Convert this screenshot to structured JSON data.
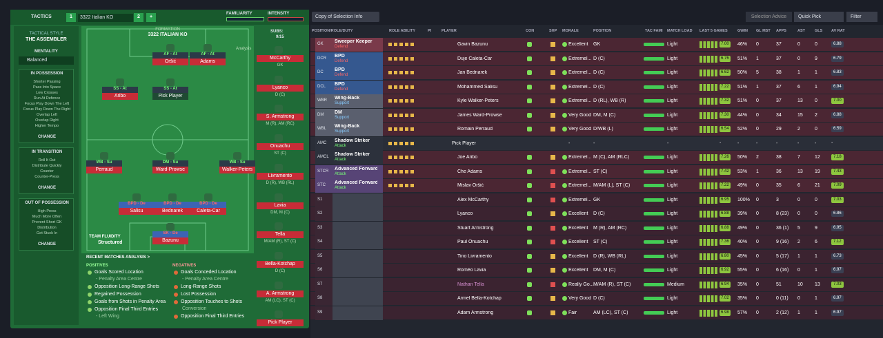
{
  "header": {
    "tab": "TACTICS",
    "tactic": "3322 Italian KO",
    "slots": [
      "1",
      "2",
      "+"
    ],
    "familiarity": "FAMILIARITY",
    "intensity": "INTENSITY"
  },
  "style": {
    "heading": "TACTICAL STYLE",
    "name": "THE ASSEMBLER",
    "mentality_label": "MENTALITY",
    "mentality": "Balanced",
    "sections": [
      {
        "title": "IN POSSESSION",
        "items": [
          "Shorter Passing",
          "Pass Into Space",
          "Low Crosses",
          "Run At Defence",
          "Focus Play Down The Left",
          "Focus Play Down The Right",
          "Overlap Left",
          "Overlap Right",
          "Higher Tempo"
        ],
        "button": "CHANGE"
      },
      {
        "title": "IN TRANSITION",
        "items": [
          "Roll It Out",
          "Distribute Quickly",
          "Counter",
          "Counter-Press"
        ],
        "button": "CHANGE"
      },
      {
        "title": "OUT OF POSSESSION",
        "items": [
          "High Press",
          "Much More Often",
          "Prevent Short GK",
          "Distribution",
          "Get Stuck In"
        ],
        "button": "CHANGE"
      }
    ]
  },
  "pitch": {
    "formation_label": "FORMATION",
    "formation": "3322 ITALIAN KO",
    "subs_label": "SUBS:",
    "subs_count": "9/15",
    "analysis": "Analysis",
    "players": [
      {
        "role": "AF - At",
        "name": "Oršić"
      },
      {
        "role": "AF - At",
        "name": "Adams"
      },
      {
        "role": "SS - At",
        "name": "Aribo"
      },
      {
        "role": "SS - At",
        "name": "Pick Player"
      },
      {
        "role": "WB - Su",
        "name": "Perraud"
      },
      {
        "role": "DM - Su",
        "name": "Ward-Prowse"
      },
      {
        "role": "WB - Su",
        "name": "Walker-Peters"
      },
      {
        "role": "BPD - De",
        "name": "Salisu"
      },
      {
        "role": "BPD - De",
        "name": "Bednarek"
      },
      {
        "role": "BPD - De",
        "name": "Caleta-Car"
      },
      {
        "role": "SK - De",
        "name": "Bazunu"
      }
    ],
    "subs": [
      {
        "name": "McCarthy",
        "pos": "GK"
      },
      {
        "name": "Lyanco",
        "pos": "D (C)"
      },
      {
        "name": "S. Armstrong",
        "pos": "M (R), AM (RC)"
      },
      {
        "name": "Onuachu",
        "pos": "ST (C)"
      },
      {
        "name": "Livramento",
        "pos": "D (R), WB (RL)"
      },
      {
        "name": "Lavia",
        "pos": "DM, M (C)"
      },
      {
        "name": "Tella",
        "pos": "M/AM (R), ST (C)"
      },
      {
        "name": "Bella-Kotchap",
        "pos": "D (C)"
      },
      {
        "name": "A. Armstrong",
        "pos": "AM (LC), ST (C)"
      },
      {
        "name": "Pick Player"
      }
    ]
  },
  "fluidity": {
    "label": "TEAM FLUIDITY",
    "value": "Structured"
  },
  "recent": {
    "title": "RECENT MATCHES ANALYSIS >",
    "positives_label": "POSITIVES",
    "positives": [
      {
        "text": "Goals Scored Location",
        "sub": "- Penalty Area Centre"
      },
      {
        "text": "Opposition Long-Range Shots"
      },
      {
        "text": "Regained Possession"
      },
      {
        "text": "Goals from Shots in Penalty Area"
      },
      {
        "text": "Opposition Final Third Entries",
        "sub": "- Left Wing"
      }
    ],
    "negatives_label": "NEGATIVES",
    "negatives": [
      {
        "text": "Goals Conceded Location",
        "sub": "- Penalty Area Centre"
      },
      {
        "text": "Long-Range Shots"
      },
      {
        "text": "Lost Possession"
      },
      {
        "text": "Opposition Touches to Shots",
        "sub": "Conversion"
      },
      {
        "text": "Opposition Final Third Entries"
      }
    ]
  },
  "toolbar": {
    "view": "Copy of Selection Info",
    "advice": "Selection Advice",
    "quick": "Quick Pick",
    "filter": "Filter"
  },
  "table": {
    "columns": [
      "POSITION/ROLE/DUTY",
      "ROLE ABILITY",
      "PI",
      "PLAYER",
      "CON",
      "SHP",
      "MORALE",
      "POSITION",
      "TAC FAMI",
      "MATCH LOAD",
      "LAST 5 GAMES",
      "GWIN",
      "GL MST",
      "APPS",
      "AST",
      "GLS",
      "AV RAT"
    ],
    "rows": [
      {
        "pos": "GK",
        "role": "Sweeper Keeper",
        "duty": "Defend",
        "player": "Gavin Bazunu",
        "morale": "Excellent",
        "position": "GK",
        "load": "Light",
        "form": "7.00",
        "gwin": "46%",
        "glmst": "0",
        "apps": "37",
        "ast": "0",
        "gls": "0",
        "avrat": "6.88"
      },
      {
        "pos": "DCR",
        "role": "BPD",
        "duty": "Defend",
        "player": "Duje Caleta-Car",
        "morale": "Extremel...",
        "position": "D (C)",
        "load": "Light",
        "form": "6.76",
        "gwin": "51%",
        "glmst": "1",
        "apps": "37",
        "ast": "0",
        "gls": "9",
        "avrat": "6.79"
      },
      {
        "pos": "DC",
        "role": "BPD",
        "duty": "Defend",
        "player": "Jan Bednarek",
        "morale": "Extremel...",
        "position": "D (C)",
        "load": "Light",
        "form": "6.62",
        "gwin": "50%",
        "glmst": "5",
        "apps": "38",
        "ast": "1",
        "gls": "1",
        "avrat": "6.83"
      },
      {
        "pos": "DCL",
        "role": "BPD",
        "duty": "Defend",
        "player": "Mohammed Salisu",
        "morale": "Extremel...",
        "position": "D (C)",
        "load": "Light",
        "form": "7.22",
        "gwin": "51%",
        "glmst": "1",
        "apps": "37",
        "ast": "6",
        "gls": "1",
        "avrat": "6.94"
      },
      {
        "pos": "WBR",
        "role": "Wing-Back",
        "duty": "Support",
        "player": "Kyle Walker-Peters",
        "morale": "Extremel...",
        "position": "D (RL), WB (R)",
        "load": "Light",
        "form": "7.32",
        "gwin": "51%",
        "glmst": "0",
        "apps": "37",
        "ast": "13",
        "gls": "0",
        "avrat": "7.00"
      },
      {
        "pos": "DM",
        "role": "DM",
        "duty": "Support",
        "player": "James Ward-Prowse",
        "morale": "Very Good",
        "position": "DM, M (C)",
        "load": "Light",
        "form": "7.30",
        "gwin": "44%",
        "glmst": "0",
        "apps": "34",
        "ast": "15",
        "gls": "2",
        "avrat": "6.88"
      },
      {
        "pos": "WBL",
        "role": "Wing-Back",
        "duty": "Support",
        "player": "Romain Perraud",
        "morale": "Very Good",
        "position": "D/WB (L)",
        "load": "Light",
        "form": "6.54",
        "gwin": "52%",
        "glmst": "0",
        "apps": "29",
        "ast": "2",
        "gls": "0",
        "avrat": "6.59"
      },
      {
        "pos": "AMC",
        "role": "Shadow Striker",
        "duty": "Attack",
        "player": "Pick Player",
        "morale": "-",
        "position": "-",
        "load": "-",
        "form": "-",
        "gwin": "-",
        "glmst": "-",
        "apps": "-",
        "ast": "-",
        "gls": "-",
        "avrat": "-"
      },
      {
        "pos": "AMCL",
        "role": "Shadow Striker",
        "duty": "Attack",
        "player": "Joe Aribo",
        "morale": "Extremel...",
        "position": "M (C), AM (RLC)",
        "load": "Light",
        "form": "7.26",
        "gwin": "50%",
        "glmst": "2",
        "apps": "38",
        "ast": "7",
        "gls": "12",
        "avrat": "7.18"
      },
      {
        "pos": "STCR",
        "role": "Advanced Forward",
        "duty": "Attack",
        "player": "Che Adams",
        "morale": "Extremel...",
        "position": "ST (C)",
        "load": "Light",
        "form": "7.42",
        "gwin": "53%",
        "glmst": "1",
        "apps": "36",
        "ast": "13",
        "gls": "19",
        "avrat": "7.43"
      },
      {
        "pos": "STC",
        "role": "Advanced Forward",
        "duty": "Attack",
        "player": "Mislav Oršić",
        "morale": "Extremel...",
        "position": "M/AM (L), ST (C)",
        "load": "Light",
        "form": "7.22",
        "gwin": "49%",
        "glmst": "0",
        "apps": "35",
        "ast": "6",
        "gls": "21",
        "avrat": "7.09"
      },
      {
        "pos": "S1",
        "player": "Alex McCarthy",
        "morale": "Extremel...",
        "position": "GK",
        "load": "Light",
        "form": "6.95",
        "gwin": "100%",
        "glmst": "0",
        "apps": "3",
        "ast": "0",
        "gls": "0",
        "avrat": "7.03"
      },
      {
        "pos": "S2",
        "player": "Lyanco",
        "morale": "Excellent",
        "position": "D (C)",
        "load": "Light",
        "form": "6.88",
        "gwin": "39%",
        "glmst": "0",
        "apps": "8 (23)",
        "ast": "0",
        "gls": "0",
        "avrat": "6.86"
      },
      {
        "pos": "S3",
        "player": "Stuart Armstrong",
        "morale": "Excellent",
        "position": "M (R), AM (RC)",
        "load": "Light",
        "form": "6.88",
        "gwin": "49%",
        "glmst": "0",
        "apps": "36 (1)",
        "ast": "5",
        "gls": "9",
        "avrat": "6.95"
      },
      {
        "pos": "S4",
        "player": "Paul Onuachu",
        "morale": "Excellent",
        "position": "ST (C)",
        "load": "Light",
        "form": "7.36",
        "gwin": "40%",
        "glmst": "0",
        "apps": "9 (16)",
        "ast": "2",
        "gls": "6",
        "avrat": "7.12"
      },
      {
        "pos": "S5",
        "player": "Tino Livramento",
        "morale": "Excellent",
        "position": "D (R), WB (RL)",
        "load": "Light",
        "form": "6.80",
        "gwin": "45%",
        "glmst": "0",
        "apps": "5 (17)",
        "ast": "1",
        "gls": "1",
        "avrat": "6.73"
      },
      {
        "pos": "S6",
        "player": "Roméo Lavia",
        "morale": "Excellent",
        "position": "DM, M (C)",
        "load": "Light",
        "form": "6.92",
        "gwin": "55%",
        "glmst": "0",
        "apps": "6 (16)",
        "ast": "0",
        "gls": "1",
        "avrat": "6.97"
      },
      {
        "pos": "S7",
        "player": "Nathan Tella",
        "morale": "Really Go...",
        "position": "M/AM (R), ST (C)",
        "load": "Medium",
        "form": "6.94",
        "gwin": "35%",
        "glmst": "0",
        "apps": "51",
        "ast": "10",
        "gls": "13",
        "avrat": "7.03"
      },
      {
        "pos": "S8",
        "player": "Armel Bella-Kotchap",
        "morale": "Very Good",
        "position": "D (C)",
        "load": "Light",
        "form": "7.02",
        "gwin": "35%",
        "glmst": "0",
        "apps": "0 (11)",
        "ast": "0",
        "gls": "1",
        "avrat": "6.97"
      },
      {
        "pos": "S9",
        "player": "Adam Armstrong",
        "morale": "Fair",
        "position": "AM (LC), ST (C)",
        "load": "Light",
        "form": "6.98",
        "gwin": "57%",
        "glmst": "0",
        "apps": "2 (12)",
        "ast": "1",
        "gls": "1",
        "avrat": "6.97"
      }
    ]
  }
}
